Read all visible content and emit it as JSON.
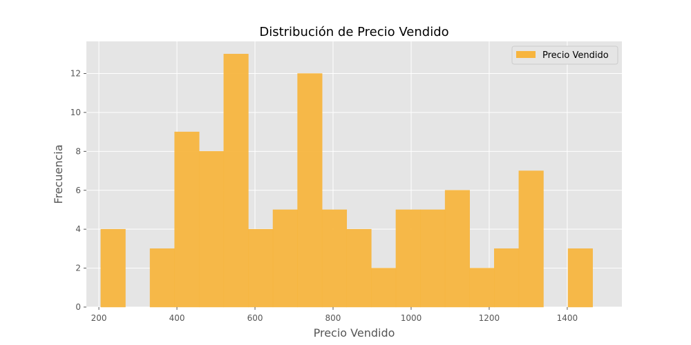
{
  "chart_data": {
    "type": "bar",
    "title": "Distribución de Precio Vendido",
    "xlabel": "Precio Vendido",
    "ylabel": "Frecuencia",
    "bin_edges": [
      205,
      268,
      331,
      394,
      457,
      520,
      583,
      646,
      709,
      772,
      835,
      898,
      961,
      1024,
      1087,
      1150,
      1213,
      1276,
      1339,
      1402,
      1465
    ],
    "values": [
      4,
      0,
      3,
      9,
      8,
      13,
      4,
      5,
      12,
      5,
      4,
      2,
      5,
      5,
      6,
      2,
      3,
      7,
      0,
      3
    ],
    "xlim": [
      168,
      1540
    ],
    "ylim": [
      0,
      13.65
    ],
    "x_ticks": [
      200,
      400,
      600,
      800,
      1000,
      1200,
      1400
    ],
    "y_ticks": [
      0,
      2,
      4,
      6,
      8,
      10,
      12
    ],
    "grid": true,
    "legend": {
      "position": "top-right",
      "entries": [
        "Precio Vendido"
      ]
    },
    "colors": {
      "bar": "#f7b53f",
      "background": "#e5e5e5",
      "grid": "#ffffff"
    }
  }
}
